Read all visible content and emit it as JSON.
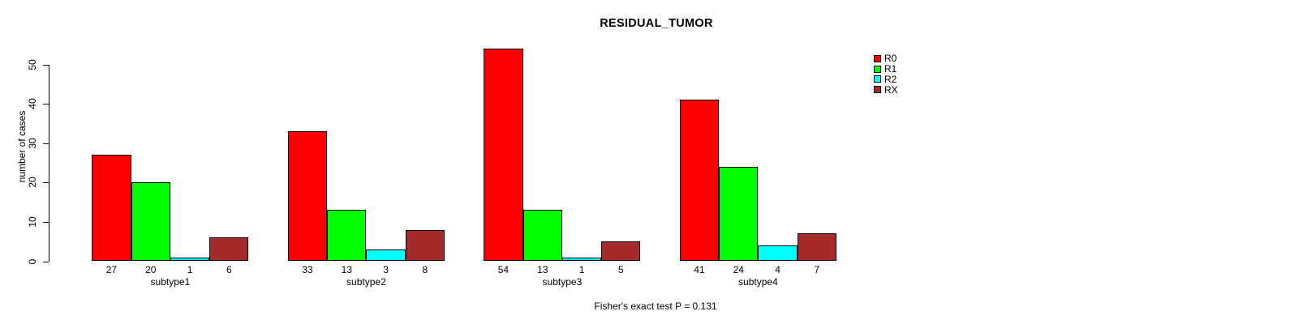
{
  "chart_data": {
    "type": "bar",
    "title": "RESIDUAL_TUMOR",
    "ylabel": "number of cases",
    "xlabel": "",
    "footer": "Fisher's exact test P = 0.131",
    "categories": [
      "subtype1",
      "subtype2",
      "subtype3",
      "subtype4"
    ],
    "series": [
      {
        "name": "R0",
        "color": "#FF0000",
        "values": [
          27,
          33,
          54,
          41
        ]
      },
      {
        "name": "R1",
        "color": "#00FF00",
        "values": [
          20,
          13,
          13,
          24
        ]
      },
      {
        "name": "R2",
        "color": "#00FFFF",
        "values": [
          1,
          3,
          1,
          4
        ]
      },
      {
        "name": "RX",
        "color": "#A52A2A",
        "values": [
          6,
          8,
          5,
          7
        ]
      }
    ],
    "yticks": [
      0,
      10,
      20,
      30,
      40,
      50
    ],
    "ylim": [
      0,
      56
    ],
    "grid": false,
    "legend_position": "right",
    "show_bar_values": true,
    "bar_border_color": "#000000",
    "text_color": "#000000"
  }
}
